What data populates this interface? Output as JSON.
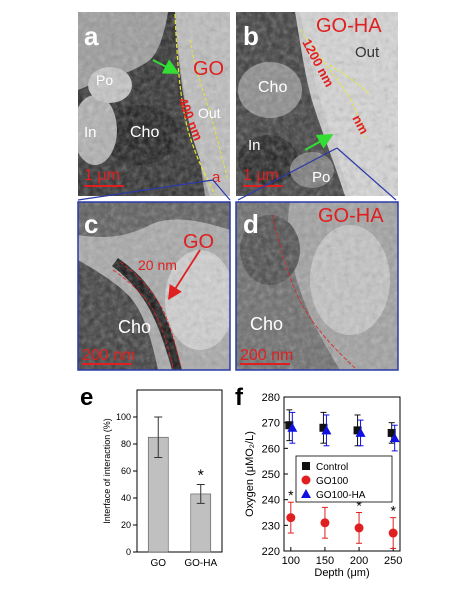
{
  "panels": {
    "a": {
      "letter": "a",
      "title": "GO",
      "labels": {
        "po": "Po",
        "in": "In",
        "cho": "Cho",
        "out": "Out",
        "thickness": "400 nm",
        "sub": "a"
      },
      "scale": "1 μm"
    },
    "b": {
      "letter": "b",
      "title": "GO-HA",
      "labels": {
        "cho": "Cho",
        "in": "In",
        "po": "Po",
        "out": "Out",
        "thickness": "1200 nm",
        "thickness2": "nm"
      },
      "scale": "1 μm"
    },
    "c": {
      "letter": "c",
      "title": "GO",
      "labels": {
        "thickness": "20 nm",
        "cho": "Cho"
      },
      "scale": "200 nm"
    },
    "d": {
      "letter": "d",
      "title": "GO-HA",
      "labels": {
        "cho": "Cho"
      },
      "scale": "200 nm"
    },
    "e": {
      "letter": "e"
    },
    "f": {
      "letter": "f"
    }
  },
  "colors": {
    "accent_red": "#e02020",
    "arrow_green": "#33dd33",
    "boundary_yellow": "#e8e830",
    "frame_blue": "#2a3aa8",
    "bar_gray": "#c0c0c0",
    "control_marker": "#111111",
    "go100_marker": "#e02020",
    "goha_marker": "#1010e0"
  },
  "chart_data": [
    {
      "type": "bar",
      "panel": "e",
      "categories": [
        "GO",
        "GO-HA"
      ],
      "values": [
        85,
        43
      ],
      "errors": [
        15,
        7
      ],
      "ylabel": "Interface of interaction (%)",
      "ylim": [
        0,
        120
      ],
      "yticks": [
        "0",
        "20",
        "40",
        "60",
        "80",
        "100"
      ],
      "annotations": [
        {
          "category": "GO-HA",
          "text": "*"
        }
      ]
    },
    {
      "type": "scatter",
      "panel": "f",
      "x": [
        100,
        150,
        200,
        250
      ],
      "xlabel": "Depth (μm)",
      "ylabel": "Oxygen (μMO₂/L)",
      "xlim": [
        90,
        260
      ],
      "ylim": [
        220,
        280
      ],
      "xticks": [
        "100",
        "150",
        "200",
        "250"
      ],
      "yticks": [
        "220",
        "230",
        "240",
        "250",
        "260",
        "270",
        "280"
      ],
      "legend_position": "center-right",
      "series": [
        {
          "name": "Control",
          "marker": "square",
          "values": [
            269,
            268,
            267,
            266
          ],
          "errors": [
            6,
            6,
            6,
            4
          ]
        },
        {
          "name": "GO100",
          "marker": "circle",
          "values": [
            233,
            231,
            229,
            227
          ],
          "errors": [
            6,
            6,
            6,
            6
          ],
          "annotations": [
            "*",
            "*",
            "*",
            "*"
          ]
        },
        {
          "name": "GO100-HA",
          "marker": "triangle",
          "values": [
            268,
            267,
            266,
            264
          ],
          "errors": [
            6,
            6,
            5,
            5
          ]
        }
      ]
    }
  ]
}
